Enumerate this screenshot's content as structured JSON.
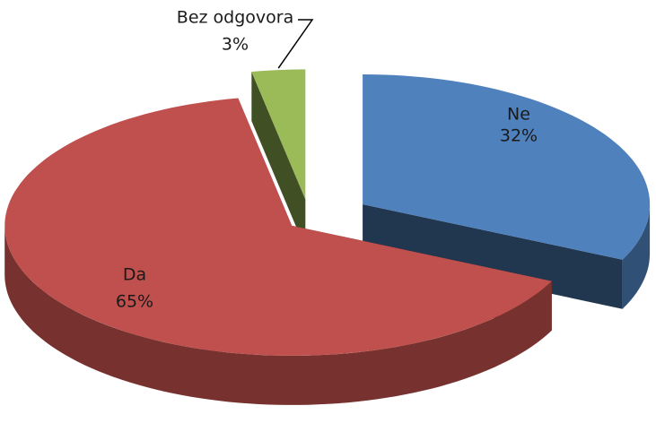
{
  "chart_data": {
    "type": "pie",
    "categories": [
      "Ne",
      "Da",
      "Bez odgovora"
    ],
    "values": [
      32,
      65,
      3
    ],
    "value_labels": [
      "32%",
      "65%",
      "3%"
    ],
    "colors": [
      "#4f81bd",
      "#c0504d",
      "#9bbb59"
    ]
  }
}
